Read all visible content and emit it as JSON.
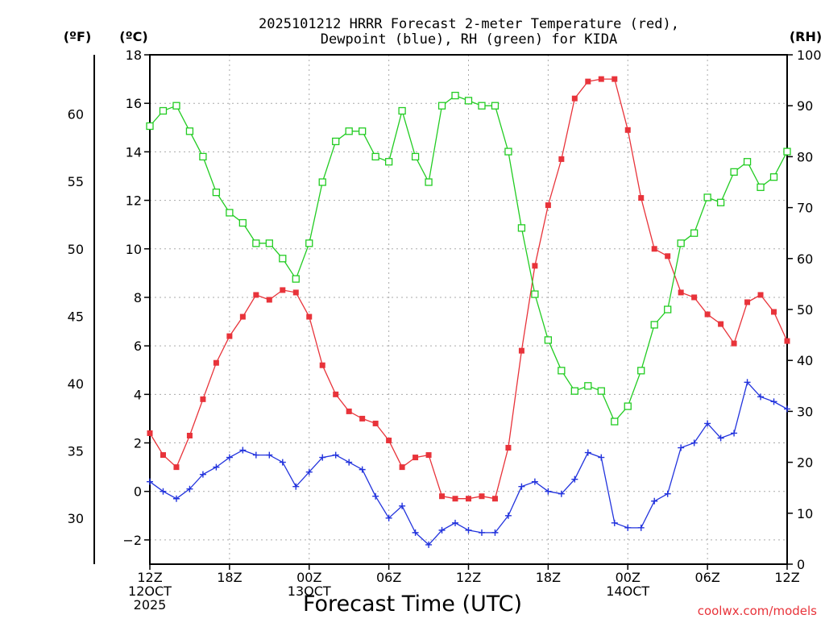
{
  "chart_data": {
    "type": "line",
    "title_lines": [
      "2025101212 HRRR Forecast 2-meter Temperature (red),",
      "Dewpoint (blue), RH (green) for KIDA"
    ],
    "xlabel": "Forecast Time (UTC)",
    "credit": "coolwx.com/models",
    "axis_headers": {
      "fahrenheit": "(ºF)",
      "celsius": "(ºC)",
      "rh": "(RH)"
    },
    "x_range_hours": [
      0,
      48
    ],
    "x_ticks": [
      {
        "hour": 0,
        "lines": [
          "12Z",
          "12OCT",
          "2025"
        ]
      },
      {
        "hour": 6,
        "lines": [
          "18Z"
        ]
      },
      {
        "hour": 12,
        "lines": [
          "00Z",
          "13OCT"
        ]
      },
      {
        "hour": 18,
        "lines": [
          "06Z"
        ]
      },
      {
        "hour": 24,
        "lines": [
          "12Z"
        ]
      },
      {
        "hour": 30,
        "lines": [
          "18Z"
        ]
      },
      {
        "hour": 36,
        "lines": [
          "00Z",
          "14OCT"
        ]
      },
      {
        "hour": 42,
        "lines": [
          "06Z"
        ]
      },
      {
        "hour": 48,
        "lines": [
          "12Z"
        ]
      }
    ],
    "celsius_axis": {
      "range": [
        -3,
        18
      ],
      "ticks": [
        -2,
        0,
        2,
        4,
        6,
        8,
        10,
        12,
        14,
        16,
        18
      ]
    },
    "fahrenheit_axis": {
      "ticks": [
        30,
        35,
        40,
        45,
        50,
        55,
        60
      ]
    },
    "rh_axis": {
      "range": [
        0,
        100
      ],
      "ticks": [
        0,
        10,
        20,
        30,
        40,
        50,
        60,
        70,
        80,
        90,
        100
      ]
    },
    "grid": true,
    "series": [
      {
        "key": "temperature",
        "axis": "celsius",
        "color": "#e8333a",
        "marker": "filled-square",
        "values": [
          2.4,
          1.5,
          1.0,
          2.3,
          3.8,
          5.3,
          6.4,
          7.2,
          8.1,
          7.9,
          8.3,
          8.2,
          7.2,
          5.2,
          4.0,
          3.3,
          3.0,
          2.8,
          2.1,
          1.0,
          1.4,
          1.5,
          -0.2,
          -0.3,
          -0.3,
          -0.2,
          -0.3,
          1.8,
          5.8,
          9.3,
          11.8,
          13.7,
          16.2,
          16.9,
          17.0,
          17.0,
          14.9,
          12.1,
          10.0,
          9.7,
          8.2,
          8.0,
          7.3,
          6.9,
          6.1,
          7.8,
          8.1,
          7.4,
          6.2
        ]
      },
      {
        "key": "dewpoint",
        "axis": "celsius",
        "color": "#2233dd",
        "marker": "plus",
        "values": [
          0.4,
          0.0,
          -0.3,
          0.1,
          0.7,
          1.0,
          1.4,
          1.7,
          1.5,
          1.5,
          1.2,
          0.2,
          0.8,
          1.4,
          1.5,
          1.2,
          0.9,
          -0.2,
          -1.1,
          -0.6,
          -1.7,
          -2.2,
          -1.6,
          -1.3,
          -1.6,
          -1.7,
          -1.7,
          -1.0,
          0.2,
          0.4,
          0.0,
          -0.1,
          0.5,
          1.6,
          1.4,
          -1.3,
          -1.5,
          -1.5,
          -0.4,
          -0.1,
          1.8,
          2.0,
          2.8,
          2.2,
          2.4,
          4.5,
          3.9,
          3.7,
          3.4
        ]
      },
      {
        "key": "rh",
        "axis": "rh",
        "color": "#22cc22",
        "marker": "open-square",
        "values": [
          86,
          89,
          90,
          85,
          80,
          73,
          69,
          67,
          63,
          63,
          60,
          56,
          63,
          75,
          83,
          85,
          85,
          80,
          79,
          89,
          80,
          75,
          90,
          92,
          91,
          90,
          90,
          81,
          66,
          53,
          44,
          38,
          34,
          35,
          34,
          28,
          31,
          38,
          47,
          50,
          63,
          65,
          72,
          71,
          77,
          79,
          74,
          76,
          81
        ]
      }
    ]
  }
}
